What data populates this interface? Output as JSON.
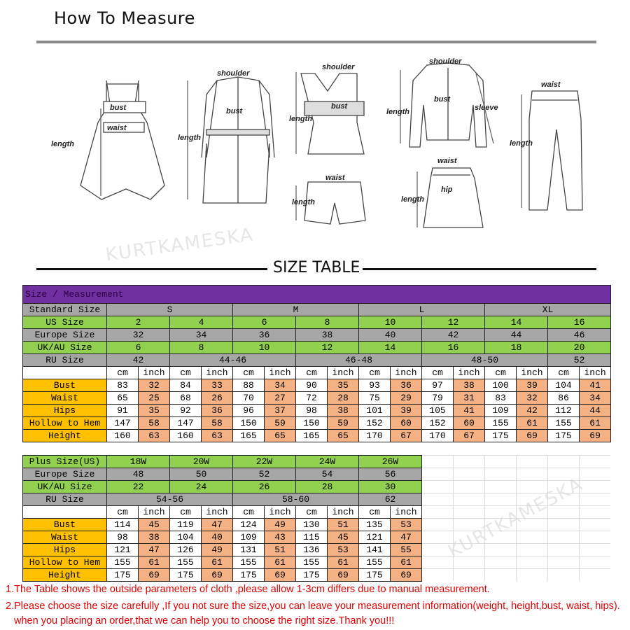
{
  "header": {
    "title": "How To Measure",
    "watermark": "KURTKAMESKA"
  },
  "illustrations": {
    "dress": {
      "bust": "bust",
      "waist": "waist",
      "length": "length"
    },
    "coat": {
      "shoulder": "shoulder",
      "bust": "bust",
      "length": "length"
    },
    "vest": {
      "shoulder": "shoulder",
      "bust": "bust",
      "length": "length"
    },
    "shorts": {
      "waist": "waist",
      "length": "length"
    },
    "shirt": {
      "shoulder": "shoulder",
      "bust": "bust",
      "length": "length",
      "sleeve": "sleeve"
    },
    "skirt": {
      "waist": "waist",
      "hip": "hip",
      "length": "length"
    },
    "pants": {
      "waist": "waist",
      "length": "length"
    }
  },
  "size_table_title": "SIZE TABLE",
  "colors": {
    "purple": "#7030a0",
    "gray": "#a6a6a6",
    "green": "#92d050",
    "gold": "#ffc000",
    "salmon": "#f4b183",
    "note_red": "#e00000"
  },
  "table_main": {
    "caption": "Size / Measurement",
    "standard": {
      "label": "Standard Size",
      "values": [
        "S",
        "M",
        "L",
        "XL"
      ]
    },
    "us": {
      "label": "US Size",
      "values": [
        "2",
        "4",
        "6",
        "8",
        "10",
        "12",
        "14",
        "16"
      ]
    },
    "europe": {
      "label": "Europe Size",
      "values": [
        "32",
        "34",
        "36",
        "38",
        "40",
        "42",
        "44",
        "46"
      ]
    },
    "ukau": {
      "label": "UK/AU Size",
      "values": [
        "6",
        "8",
        "10",
        "12",
        "14",
        "16",
        "18",
        "20"
      ]
    },
    "ru": {
      "label": "RU Size",
      "values": [
        "42",
        "44-46",
        "46-48",
        "48-50",
        "52"
      ]
    },
    "units": [
      "cm",
      "inch"
    ],
    "measurements": [
      {
        "label": "Bust",
        "values": [
          83,
          32,
          84,
          33,
          88,
          34,
          90,
          35,
          93,
          36,
          97,
          38,
          100,
          39,
          104,
          41
        ]
      },
      {
        "label": "Waist",
        "values": [
          65,
          25,
          68,
          26,
          70,
          27,
          72,
          28,
          75,
          29,
          79,
          31,
          83,
          32,
          86,
          34
        ]
      },
      {
        "label": "Hips",
        "values": [
          91,
          35,
          92,
          36,
          96,
          37,
          98,
          38,
          101,
          39,
          105,
          41,
          109,
          42,
          112,
          44
        ]
      },
      {
        "label": "Hollow to Hem",
        "values": [
          147,
          58,
          147,
          58,
          150,
          59,
          150,
          59,
          152,
          60,
          152,
          60,
          155,
          61,
          155,
          61
        ]
      },
      {
        "label": "Height",
        "values": [
          160,
          63,
          160,
          63,
          165,
          65,
          165,
          65,
          170,
          67,
          170,
          67,
          175,
          69,
          175,
          69
        ]
      }
    ]
  },
  "table_plus": {
    "plus": {
      "label": "Plus Size(US)",
      "values": [
        "18W",
        "20W",
        "22W",
        "24W",
        "26W"
      ]
    },
    "europe": {
      "label": "Europe Size",
      "values": [
        "48",
        "50",
        "52",
        "54",
        "56"
      ]
    },
    "ukau": {
      "label": "UK/AU Size",
      "values": [
        "22",
        "24",
        "26",
        "28",
        "30"
      ]
    },
    "ru": {
      "label": "RU Size",
      "values": [
        "54-56",
        "58-60",
        "62"
      ]
    },
    "units": [
      "cm",
      "inch"
    ],
    "measurements": [
      {
        "label": "Bust",
        "values": [
          114,
          45,
          119,
          47,
          124,
          49,
          130,
          51,
          135,
          53
        ]
      },
      {
        "label": "Waist",
        "values": [
          98,
          38,
          104,
          40,
          109,
          43,
          115,
          45,
          121,
          47
        ]
      },
      {
        "label": "Hips",
        "values": [
          121,
          47,
          126,
          49,
          131,
          51,
          136,
          53,
          141,
          55
        ]
      },
      {
        "label": "Hollow to Hem",
        "values": [
          155,
          61,
          155,
          61,
          155,
          61,
          155,
          61,
          155,
          61
        ]
      },
      {
        "label": "Height",
        "values": [
          175,
          69,
          175,
          69,
          175,
          69,
          175,
          69,
          175,
          69
        ]
      }
    ]
  },
  "notes": [
    "1.The Table shows the outside parameters of cloth ,please allow 1-3cm differs due to manual measurement.",
    "2.Please choose the size carefully ,If you not sure the size,you can leave your measurement information(weight, height,bust, waist, hips).",
    "when you placing an order,that we can help you to choose the right size.Thank you!!!"
  ]
}
